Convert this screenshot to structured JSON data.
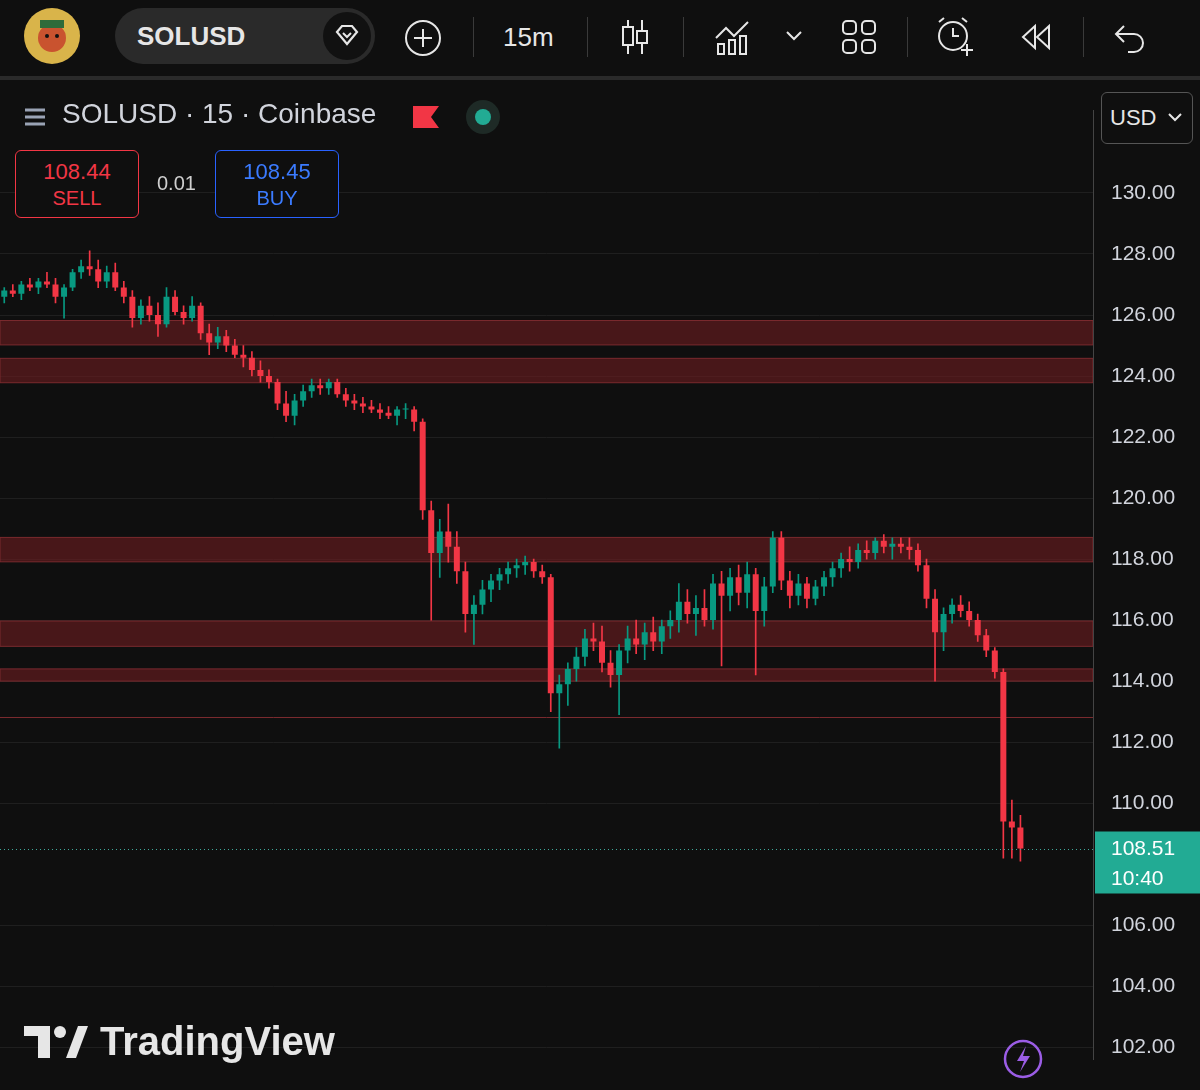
{
  "toolbar": {
    "symbol": "SOLUSD",
    "interval": "15m"
  },
  "header": {
    "title": "SOLUSD · 15 · Coinbase"
  },
  "quote": {
    "sell": {
      "price": 108.44,
      "label": "SELL"
    },
    "spread": 0.01,
    "buy": {
      "price": 108.45,
      "label": "BUY"
    }
  },
  "currency": "USD",
  "watermark": "TradingView",
  "chart_data": {
    "type": "candlestick",
    "ohlc": [
      [
        126.6,
        126.9,
        126.4,
        126.8
      ],
      [
        126.8,
        127.0,
        126.6,
        126.7
      ],
      [
        126.7,
        127.1,
        126.5,
        127.0
      ],
      [
        127.0,
        127.2,
        126.8,
        126.9
      ],
      [
        126.9,
        127.2,
        126.7,
        127.1
      ],
      [
        127.1,
        127.4,
        126.9,
        127.0
      ],
      [
        127.0,
        127.2,
        126.4,
        126.6
      ],
      [
        126.6,
        127.0,
        125.9,
        126.9
      ],
      [
        126.9,
        127.5,
        126.8,
        127.4
      ],
      [
        127.4,
        127.8,
        127.2,
        127.6
      ],
      [
        127.6,
        128.1,
        127.3,
        127.5
      ],
      [
        127.5,
        127.8,
        126.9,
        127.1
      ],
      [
        127.1,
        127.6,
        126.9,
        127.4
      ],
      [
        127.4,
        127.7,
        126.8,
        126.9
      ],
      [
        126.9,
        127.1,
        126.4,
        126.6
      ],
      [
        126.6,
        126.8,
        125.6,
        125.9
      ],
      [
        125.9,
        126.5,
        125.7,
        126.3
      ],
      [
        126.3,
        126.6,
        125.8,
        126.0
      ],
      [
        126.0,
        126.4,
        125.3,
        125.7
      ],
      [
        125.7,
        126.9,
        125.6,
        126.6
      ],
      [
        126.6,
        126.8,
        126.0,
        126.1
      ],
      [
        126.1,
        126.3,
        125.7,
        125.9
      ],
      [
        125.9,
        126.6,
        125.8,
        126.3
      ],
      [
        126.3,
        126.4,
        125.2,
        125.4
      ],
      [
        125.4,
        125.7,
        124.7,
        125.1
      ],
      [
        125.1,
        125.6,
        124.9,
        125.3
      ],
      [
        125.3,
        125.5,
        124.8,
        125.0
      ],
      [
        125.0,
        125.2,
        124.6,
        124.7
      ],
      [
        124.7,
        125.0,
        124.3,
        124.6
      ],
      [
        124.6,
        124.8,
        124.0,
        124.2
      ],
      [
        124.2,
        124.5,
        123.8,
        124.0
      ],
      [
        124.0,
        124.2,
        123.6,
        123.8
      ],
      [
        123.8,
        123.9,
        122.9,
        123.1
      ],
      [
        123.1,
        123.5,
        122.5,
        122.7
      ],
      [
        122.7,
        123.4,
        122.4,
        123.2
      ],
      [
        123.2,
        123.7,
        123.0,
        123.5
      ],
      [
        123.5,
        123.9,
        123.3,
        123.7
      ],
      [
        123.7,
        123.9,
        123.4,
        123.6
      ],
      [
        123.6,
        123.9,
        123.4,
        123.8
      ],
      [
        123.8,
        123.9,
        123.3,
        123.4
      ],
      [
        123.4,
        123.6,
        123.0,
        123.2
      ],
      [
        123.2,
        123.4,
        122.9,
        123.1
      ],
      [
        123.1,
        123.3,
        122.8,
        123.0
      ],
      [
        123.0,
        123.2,
        122.8,
        122.9
      ],
      [
        122.9,
        123.1,
        122.6,
        122.8
      ],
      [
        122.8,
        123.0,
        122.6,
        122.7
      ],
      [
        122.7,
        123.0,
        122.4,
        122.9
      ],
      [
        122.9,
        123.1,
        122.6,
        122.9
      ],
      [
        122.9,
        123.0,
        122.2,
        122.5
      ],
      [
        122.5,
        122.6,
        119.3,
        119.6
      ],
      [
        119.6,
        119.9,
        116.0,
        118.2
      ],
      [
        118.2,
        119.3,
        117.4,
        118.9
      ],
      [
        118.9,
        119.8,
        117.9,
        118.4
      ],
      [
        118.4,
        118.9,
        117.2,
        117.6
      ],
      [
        117.6,
        117.9,
        115.6,
        116.2
      ],
      [
        116.2,
        116.8,
        115.2,
        116.5
      ],
      [
        116.5,
        117.3,
        116.2,
        117.0
      ],
      [
        117.0,
        117.5,
        116.6,
        117.3
      ],
      [
        117.3,
        117.7,
        117.0,
        117.5
      ],
      [
        117.5,
        117.9,
        117.2,
        117.7
      ],
      [
        117.7,
        118.0,
        117.4,
        117.8
      ],
      [
        117.8,
        118.1,
        117.5,
        117.9
      ],
      [
        117.9,
        118.0,
        117.4,
        117.6
      ],
      [
        117.6,
        117.8,
        117.2,
        117.4
      ],
      [
        117.4,
        117.5,
        113.0,
        113.6
      ],
      [
        113.6,
        114.2,
        111.8,
        113.9
      ],
      [
        113.9,
        114.6,
        113.2,
        114.4
      ],
      [
        114.4,
        115.1,
        114.0,
        114.8
      ],
      [
        114.8,
        115.7,
        114.5,
        115.4
      ],
      [
        115.4,
        115.9,
        115.0,
        115.3
      ],
      [
        115.3,
        115.8,
        114.3,
        114.6
      ],
      [
        114.6,
        115.0,
        113.8,
        114.2
      ],
      [
        114.2,
        115.2,
        112.9,
        115.0
      ],
      [
        115.0,
        115.8,
        114.6,
        115.4
      ],
      [
        115.4,
        116.0,
        114.9,
        115.2
      ],
      [
        115.2,
        115.9,
        114.7,
        115.6
      ],
      [
        115.6,
        116.1,
        115.0,
        115.3
      ],
      [
        115.3,
        116.0,
        114.9,
        115.8
      ],
      [
        115.8,
        116.3,
        115.4,
        116.0
      ],
      [
        116.0,
        117.2,
        115.6,
        116.6
      ],
      [
        116.6,
        117.0,
        115.9,
        116.2
      ],
      [
        116.2,
        116.8,
        115.5,
        116.4
      ],
      [
        116.4,
        117.0,
        115.8,
        116.0
      ],
      [
        116.0,
        117.5,
        115.7,
        117.2
      ],
      [
        117.2,
        117.6,
        114.5,
        116.8
      ],
      [
        116.8,
        117.7,
        116.3,
        117.4
      ],
      [
        117.4,
        117.8,
        116.5,
        116.9
      ],
      [
        116.9,
        117.9,
        116.4,
        117.5
      ],
      [
        117.5,
        117.7,
        114.2,
        116.3
      ],
      [
        116.3,
        117.4,
        115.8,
        117.1
      ],
      [
        117.1,
        118.9,
        116.9,
        118.7
      ],
      [
        118.7,
        118.9,
        117.0,
        117.3
      ],
      [
        117.3,
        117.6,
        116.4,
        116.8
      ],
      [
        116.8,
        117.5,
        116.5,
        117.2
      ],
      [
        117.2,
        117.4,
        116.4,
        116.7
      ],
      [
        116.7,
        117.3,
        116.5,
        117.1
      ],
      [
        117.1,
        117.6,
        116.8,
        117.4
      ],
      [
        117.4,
        117.9,
        117.1,
        117.7
      ],
      [
        117.7,
        118.2,
        117.4,
        118.0
      ],
      [
        118.0,
        118.4,
        117.6,
        117.9
      ],
      [
        117.9,
        118.5,
        117.7,
        118.3
      ],
      [
        118.3,
        118.6,
        118.0,
        118.2
      ],
      [
        118.2,
        118.7,
        118.0,
        118.6
      ],
      [
        118.6,
        118.8,
        118.2,
        118.4
      ],
      [
        118.4,
        118.7,
        118.0,
        118.5
      ],
      [
        118.5,
        118.7,
        118.2,
        118.4
      ],
      [
        118.4,
        118.7,
        118.0,
        118.3
      ],
      [
        118.3,
        118.5,
        117.6,
        117.8
      ],
      [
        117.8,
        118.0,
        116.4,
        116.7
      ],
      [
        116.7,
        117.0,
        114.0,
        115.6
      ],
      [
        115.6,
        116.4,
        115.0,
        116.2
      ],
      [
        116.2,
        116.7,
        115.9,
        116.5
      ],
      [
        116.5,
        116.8,
        116.1,
        116.3
      ],
      [
        116.3,
        116.6,
        115.8,
        116.0
      ],
      [
        116.0,
        116.2,
        115.3,
        115.5
      ],
      [
        115.5,
        115.7,
        114.8,
        115.0
      ],
      [
        115.0,
        115.1,
        114.1,
        114.3
      ],
      [
        114.3,
        114.4,
        108.2,
        109.4
      ],
      [
        109.4,
        110.1,
        108.2,
        109.2
      ],
      [
        109.2,
        109.6,
        108.1,
        108.51
      ]
    ],
    "zones": [
      [
        125.02,
        125.82
      ],
      [
        123.78,
        124.58
      ],
      [
        117.91,
        118.71
      ],
      [
        115.14,
        115.97
      ],
      [
        114.0,
        114.4
      ]
    ],
    "levels": [
      112.83
    ],
    "last_price": 108.51,
    "countdown": "10:40",
    "ylim": [
      101.6,
      132.7
    ],
    "yticks": [
      {
        "value": 102,
        "label": "102.00"
      },
      {
        "value": 104,
        "label": "104.00"
      },
      {
        "value": 106,
        "label": "106.00"
      },
      {
        "value": 110,
        "label": "110.00"
      },
      {
        "value": 112,
        "label": "112.00"
      },
      {
        "value": 114,
        "label": "114.00"
      },
      {
        "value": 116,
        "label": "116.00"
      },
      {
        "value": 118,
        "label": "118.00"
      },
      {
        "value": 120,
        "label": "120.00"
      },
      {
        "value": 122,
        "label": "122.00"
      },
      {
        "value": 124,
        "label": "124.00"
      },
      {
        "value": 126,
        "label": "126.00"
      },
      {
        "value": 128,
        "label": "128.00"
      },
      {
        "value": 130,
        "label": "130.00"
      }
    ],
    "grid": true,
    "tick_labels": "y"
  }
}
